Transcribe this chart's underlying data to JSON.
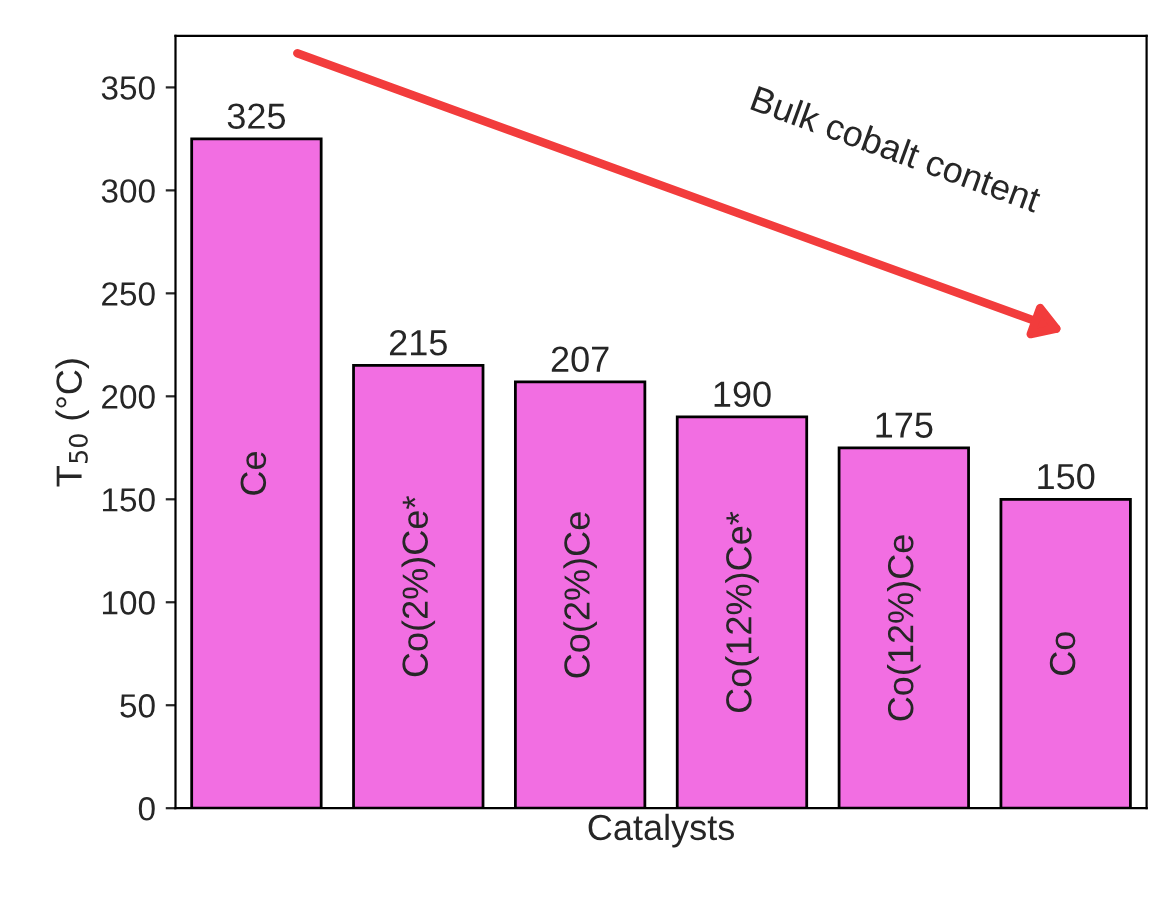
{
  "chart_data": {
    "type": "bar",
    "xlabel": "Catalysts",
    "ylabel": "T$_{50}$ (°C)",
    "categories": [
      "Ce",
      "Co(2%)Ce*",
      "Co(2%)Ce",
      "Co(12%)Ce*",
      "Co(12%)Ce",
      "Co"
    ],
    "values": [
      325,
      215,
      207,
      190,
      175,
      150
    ],
    "color": "#f26ee2",
    "ylim": [
      0,
      375
    ],
    "yticks": [
      0,
      50,
      100,
      150,
      200,
      250,
      300,
      350
    ],
    "data_labels": true,
    "tick_labels": "y",
    "grid": false,
    "annotations": [
      "Bulk cobalt content"
    ]
  }
}
